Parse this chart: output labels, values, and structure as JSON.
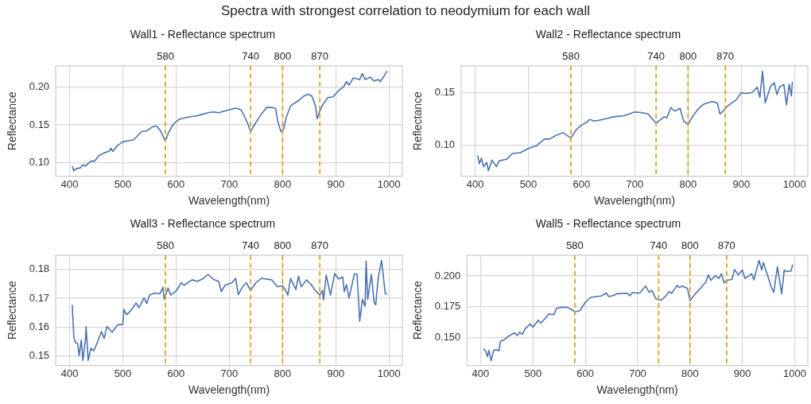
{
  "chart_data": [
    {
      "type": "line",
      "title": "Wall1 - Reflectance spectrum",
      "xlabel": "Wavelength(nm)",
      "ylabel": "Reflectance",
      "annotations": [
        "Spectra with strongest correlation to neodymium for each wall"
      ],
      "xlim": [
        374,
        1025
      ],
      "ylim": [
        0.082,
        0.228
      ],
      "xticks": [
        400,
        500,
        600,
        700,
        800,
        900,
        1000
      ],
      "yticks": [
        {
          "value": 0.1,
          "label": "0.10"
        },
        {
          "value": 0.15,
          "label": "0.15"
        },
        {
          "value": 0.2,
          "label": "0.20"
        }
      ],
      "grid": true,
      "legend": false,
      "marker": "none",
      "line_style": "solid",
      "ref_lines": [
        {
          "axis": "x",
          "value": 580,
          "label": "580",
          "color": "#dda020",
          "line_style": "dashed"
        },
        {
          "axis": "x",
          "value": 740,
          "label": "740",
          "color": "#dda020",
          "line_style": "dashed"
        },
        {
          "axis": "x",
          "value": 800,
          "label": "800",
          "color": "#dda020",
          "line_style": "dashed"
        },
        {
          "axis": "x",
          "value": 870,
          "label": "870",
          "color": "#dda020",
          "line_style": "dashed"
        }
      ],
      "series": [
        {
          "color": "#4c72b0",
          "x": [
            405,
            408,
            412,
            420,
            425,
            430,
            440,
            447,
            455,
            465,
            474,
            478,
            481,
            490,
            500,
            510,
            520,
            527,
            535,
            545,
            555,
            563,
            570,
            580,
            585,
            595,
            605,
            620,
            640,
            660,
            670,
            680,
            700,
            712,
            722,
            728,
            735,
            740,
            748,
            760,
            770,
            780,
            787,
            791,
            797,
            802,
            807,
            815,
            830,
            840,
            848,
            855,
            862,
            865,
            870,
            875,
            885,
            895,
            905,
            915,
            920,
            925,
            933,
            945,
            950,
            955,
            965,
            972,
            980,
            983,
            990,
            996
          ],
          "values": [
            0.0956,
            0.089,
            0.092,
            0.093,
            0.097,
            0.0956,
            0.102,
            0.102,
            0.109,
            0.113,
            0.115,
            0.119,
            0.1147,
            0.1227,
            0.1275,
            0.129,
            0.13,
            0.135,
            0.141,
            0.142,
            0.147,
            0.1487,
            0.143,
            0.1286,
            0.1385,
            0.151,
            0.157,
            0.16,
            0.162,
            0.166,
            0.167,
            0.166,
            0.17,
            0.172,
            0.17,
            0.162,
            0.151,
            0.141,
            0.151,
            0.164,
            0.173,
            0.173,
            0.1714,
            0.155,
            0.141,
            0.144,
            0.16,
            0.175,
            0.182,
            0.188,
            0.1905,
            0.188,
            0.175,
            0.158,
            0.168,
            0.176,
            0.186,
            0.187,
            0.195,
            0.2007,
            0.207,
            0.2026,
            0.212,
            0.21,
            0.218,
            0.21,
            0.213,
            0.208,
            0.21,
            0.207,
            0.2135,
            0.221
          ]
        }
      ]
    },
    {
      "type": "line",
      "title": "Wall2 - Reflectance spectrum",
      "xlabel": "Wavelength(nm)",
      "ylabel": "Reflectance",
      "xlim": [
        374,
        1025
      ],
      "ylim": [
        0.071,
        0.175
      ],
      "xticks": [
        400,
        500,
        600,
        700,
        800,
        900,
        1000
      ],
      "yticks": [
        {
          "value": 0.1,
          "label": "0.10"
        },
        {
          "value": 0.15,
          "label": "0.15"
        }
      ],
      "grid": true,
      "legend": false,
      "marker": "none",
      "line_style": "solid",
      "ref_lines": [
        {
          "axis": "x",
          "value": 580,
          "label": "580",
          "color": "#dda020",
          "line_style": "dashed"
        },
        {
          "axis": "x",
          "value": 740,
          "label": "740",
          "color": "#dda020",
          "line_style": "dashed"
        },
        {
          "axis": "x",
          "value": 800,
          "label": "800",
          "color": "#dda020",
          "line_style": "dashed"
        },
        {
          "axis": "x",
          "value": 870,
          "label": "870",
          "color": "#dda020",
          "line_style": "dashed"
        }
      ],
      "series": [
        {
          "color": "#4c72b0",
          "x": [
            405,
            408,
            412,
            416,
            422,
            425,
            432,
            440,
            445,
            460,
            470,
            485,
            500,
            515,
            530,
            540,
            550,
            565,
            580,
            590,
            600,
            610,
            615,
            625,
            640,
            660,
            680,
            700,
            712,
            725,
            740,
            755,
            760,
            768,
            775,
            785,
            792,
            800,
            810,
            820,
            830,
            845,
            855,
            860,
            866,
            875,
            890,
            900,
            910,
            920,
            930,
            935,
            940,
            945,
            955,
            962,
            967,
            972,
            980,
            985,
            990,
            994,
            996
          ],
          "values": [
            0.0906,
            0.0828,
            0.088,
            0.08,
            0.084,
            0.0763,
            0.0862,
            0.08,
            0.0854,
            0.0872,
            0.0924,
            0.0932,
            0.0971,
            0.0997,
            0.106,
            0.106,
            0.1089,
            0.1122,
            0.107,
            0.1148,
            0.1193,
            0.1219,
            0.1245,
            0.123,
            0.1245,
            0.127,
            0.128,
            0.1315,
            0.131,
            0.1297,
            0.121,
            0.127,
            0.126,
            0.1357,
            0.1323,
            0.135,
            0.1227,
            0.1198,
            0.1284,
            0.135,
            0.139,
            0.1414,
            0.14,
            0.1297,
            0.1323,
            0.1375,
            0.1427,
            0.1497,
            0.149,
            0.1497,
            0.155,
            0.1453,
            0.17,
            0.14,
            0.1557,
            0.159,
            0.148,
            0.155,
            0.1575,
            0.1383,
            0.1575,
            0.1466,
            0.16
          ]
        }
      ]
    },
    {
      "type": "line",
      "title": "Wall3 - Reflectance spectrum",
      "xlabel": "Wavelength(nm)",
      "ylabel": "Reflectance",
      "xlim": [
        374,
        1025
      ],
      "ylim": [
        0.1466,
        0.185
      ],
      "xticks": [
        400,
        500,
        600,
        700,
        800,
        900,
        1000
      ],
      "yticks": [
        0.15,
        0.16,
        0.17,
        0.18
      ],
      "grid": true,
      "legend": false,
      "marker": "none",
      "line_style": "solid",
      "ref_lines": [
        {
          "axis": "x",
          "value": 580,
          "label": "580",
          "color": "#dda020",
          "line_style": "dashed"
        },
        {
          "axis": "x",
          "value": 740,
          "label": "740",
          "color": "#dda020",
          "line_style": "dashed"
        },
        {
          "axis": "x",
          "value": 800,
          "label": "800",
          "color": "#dda020",
          "line_style": "dashed"
        },
        {
          "axis": "x",
          "value": 870,
          "label": "870",
          "color": "#dda020",
          "line_style": "dashed"
        }
      ],
      "series": [
        {
          "color": "#4c72b0",
          "x": [
            405,
            408,
            411,
            415,
            418,
            422,
            425,
            430,
            431,
            435,
            440,
            445,
            450,
            460,
            465,
            470,
            480,
            490,
            500,
            502,
            507,
            515,
            525,
            530,
            540,
            545,
            550,
            560,
            570,
            575,
            578,
            585,
            590,
            600,
            610,
            615,
            630,
            640,
            650,
            660,
            670,
            680,
            685,
            692,
            705,
            712,
            717,
            725,
            732,
            740,
            750,
            760,
            780,
            790,
            800,
            805,
            810,
            815,
            825,
            830,
            835,
            845,
            855,
            860,
            870,
            875,
            877,
            882,
            890,
            898,
            905,
            913,
            916,
            920,
            925,
            935,
            940,
            945,
            950,
            955,
            957,
            960,
            967,
            972,
            975,
            980,
            986,
            993,
            996
          ],
          "values": [
            0.1677,
            0.1565,
            0.1546,
            0.1543,
            0.15,
            0.1555,
            0.1483,
            0.156,
            0.1601,
            0.1484,
            0.1526,
            0.1517,
            0.1536,
            0.1584,
            0.156,
            0.1602,
            0.1582,
            0.1607,
            0.1609,
            0.1661,
            0.1643,
            0.1657,
            0.1684,
            0.1667,
            0.1701,
            0.1682,
            0.1711,
            0.1718,
            0.1716,
            0.1738,
            0.1696,
            0.1735,
            0.1711,
            0.1725,
            0.1754,
            0.1745,
            0.1764,
            0.1759,
            0.1767,
            0.1783,
            0.1766,
            0.1759,
            0.1723,
            0.1745,
            0.1754,
            0.1769,
            0.1713,
            0.174,
            0.1754,
            0.1727,
            0.1754,
            0.1769,
            0.1764,
            0.174,
            0.1743,
            0.173,
            0.1711,
            0.1769,
            0.173,
            0.1777,
            0.174,
            0.1764,
            0.1745,
            0.173,
            0.1711,
            0.1727,
            0.1694,
            0.1781,
            0.1711,
            0.1786,
            0.1767,
            0.1774,
            0.1723,
            0.1747,
            0.1701,
            0.1785,
            0.1783,
            0.162,
            0.1696,
            0.1672,
            0.1829,
            0.1696,
            0.1783,
            0.1686,
            0.1677,
            0.1774,
            0.1832,
            0.1716,
            0.1713
          ]
        }
      ]
    },
    {
      "type": "line",
      "title": "Wall5 - Reflectance spectrum",
      "xlabel": "Wavelength(nm)",
      "ylabel": "Reflectance",
      "xlim": [
        374,
        1025
      ],
      "ylim": [
        0.127,
        0.217
      ],
      "xticks": [
        400,
        500,
        600,
        700,
        800,
        900,
        1000
      ],
      "yticks": [
        {
          "value": 0.15,
          "label": "0.150"
        },
        {
          "value": 0.175,
          "label": "0.175"
        },
        {
          "value": 0.2,
          "label": "0.200"
        }
      ],
      "grid": true,
      "legend": false,
      "marker": "none",
      "line_style": "solid",
      "ref_lines": [
        {
          "axis": "x",
          "value": 580,
          "label": "580",
          "color": "#dda020",
          "line_style": "dashed"
        },
        {
          "axis": "x",
          "value": 740,
          "label": "740",
          "color": "#dda020",
          "line_style": "dashed"
        },
        {
          "axis": "x",
          "value": 800,
          "label": "800",
          "color": "#dda020",
          "line_style": "dashed"
        },
        {
          "axis": "x",
          "value": 870,
          "label": "870",
          "color": "#dda020",
          "line_style": "dashed"
        }
      ],
      "series": [
        {
          "color": "#4c72b0",
          "x": [
            405,
            410,
            413,
            416,
            420,
            425,
            430,
            435,
            438,
            445,
            455,
            465,
            470,
            475,
            480,
            485,
            495,
            500,
            510,
            515,
            525,
            530,
            540,
            545,
            555,
            565,
            575,
            580,
            590,
            600,
            610,
            620,
            630,
            640,
            645,
            655,
            660,
            680,
            685,
            690,
            700,
            705,
            715,
            722,
            727,
            735,
            745,
            755,
            760,
            765,
            775,
            780,
            785,
            795,
            800,
            810,
            820,
            830,
            835,
            840,
            848,
            855,
            860,
            865,
            870,
            880,
            885,
            892,
            900,
            905,
            910,
            918,
            922,
            927,
            932,
            937,
            940,
            950,
            955,
            960,
            967,
            975,
            980,
            985,
            993,
            996
          ],
          "values": [
            0.1407,
            0.1389,
            0.1343,
            0.1393,
            0.1309,
            0.1393,
            0.14,
            0.1389,
            0.1468,
            0.148,
            0.1514,
            0.1536,
            0.1514,
            0.1541,
            0.1525,
            0.157,
            0.1609,
            0.1582,
            0.1639,
            0.1616,
            0.1661,
            0.1691,
            0.1684,
            0.1736,
            0.1745,
            0.1745,
            0.1723,
            0.1707,
            0.1718,
            0.1786,
            0.1825,
            0.1832,
            0.1836,
            0.1861,
            0.1832,
            0.1843,
            0.1855,
            0.1859,
            0.1839,
            0.1866,
            0.1859,
            0.1866,
            0.1918,
            0.1866,
            0.1882,
            0.1814,
            0.1802,
            0.1843,
            0.1873,
            0.1859,
            0.1923,
            0.1905,
            0.1918,
            0.19,
            0.1798,
            0.1855,
            0.19,
            0.195,
            0.2009,
            0.1964,
            0.2002,
            0.198,
            0.2018,
            0.1945,
            0.1964,
            0.1973,
            0.2052,
            0.2009,
            0.2048,
            0.198,
            0.1995,
            0.2018,
            0.1968,
            0.2052,
            0.2127,
            0.2048,
            0.2109,
            0.198,
            0.1911,
            0.1866,
            0.2075,
            0.1855,
            0.2048,
            0.2036,
            0.2041,
            0.2093
          ]
        }
      ]
    }
  ]
}
